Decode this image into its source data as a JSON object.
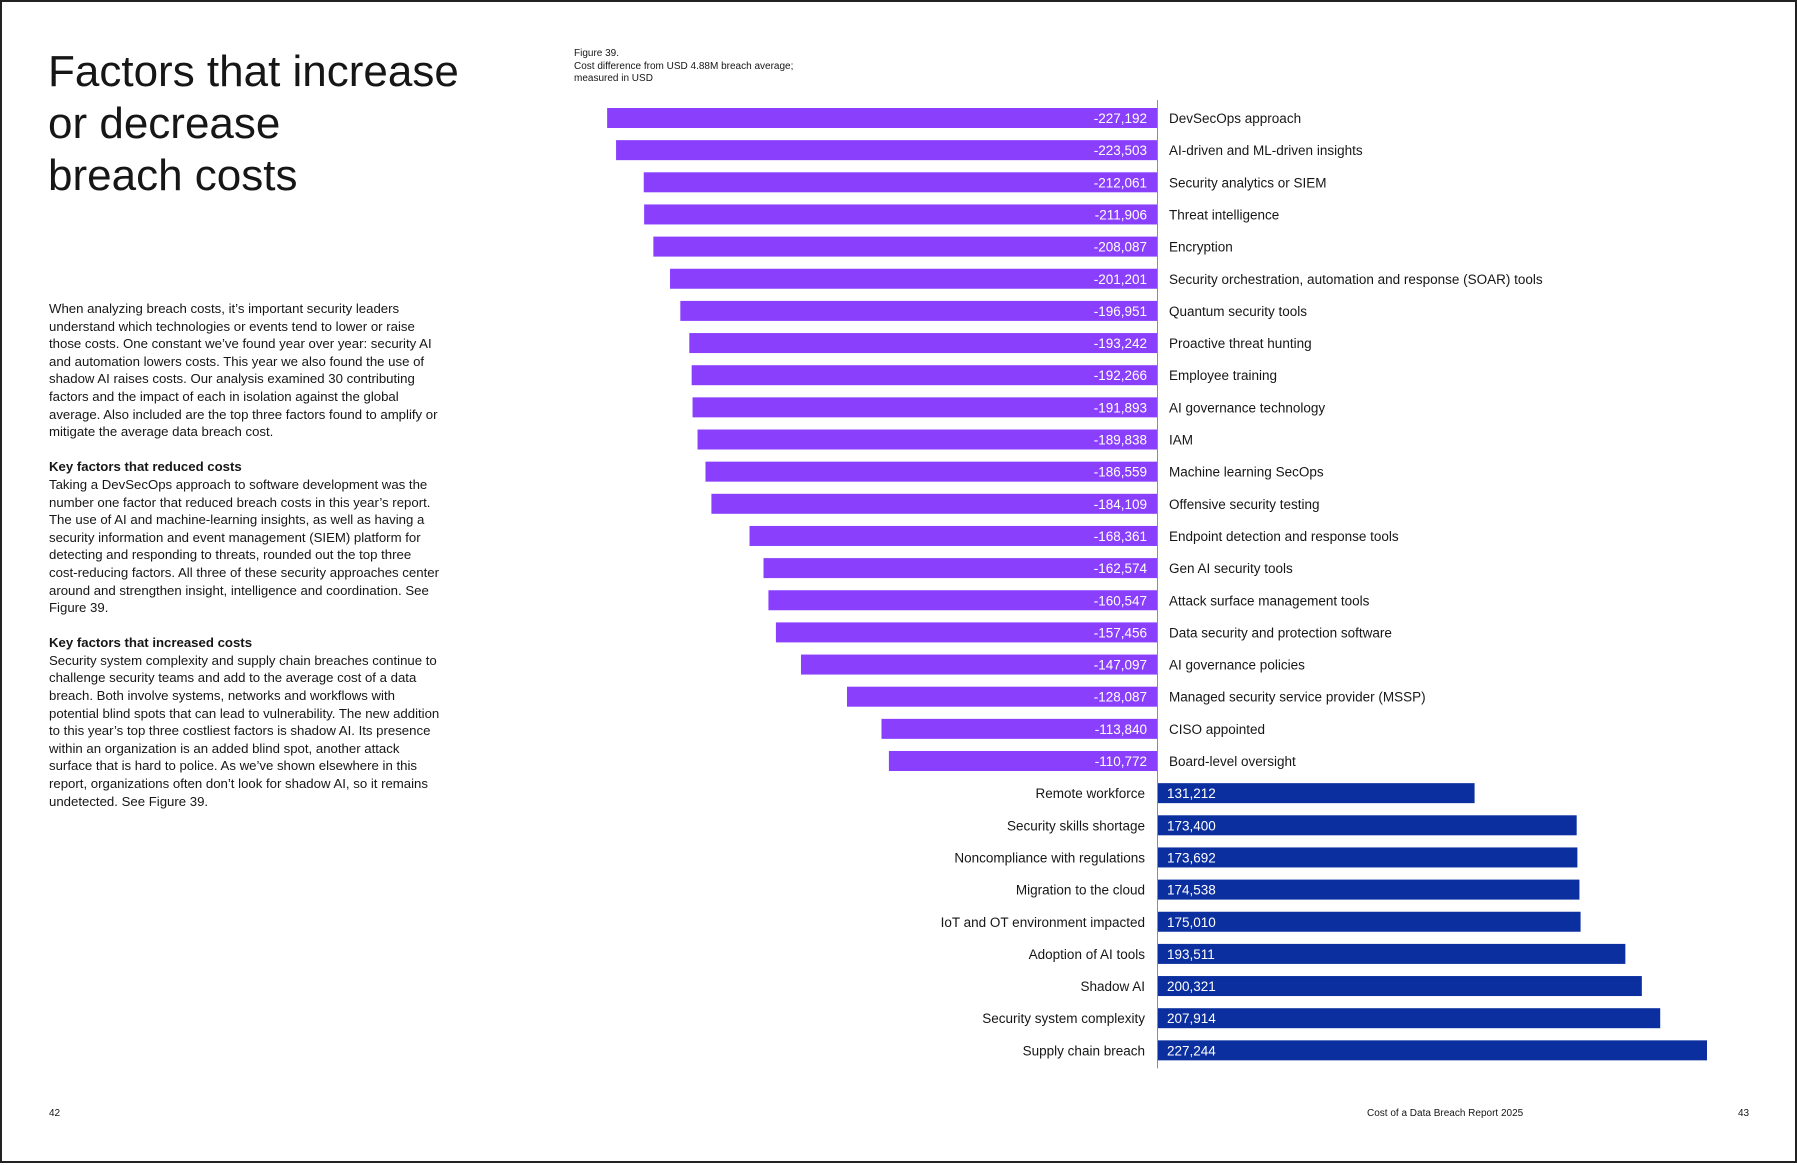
{
  "page": {
    "title_lines": [
      "Factors that increase",
      "or decrease",
      "breach costs"
    ],
    "intro": "When analyzing breach costs, it’s important security leaders understand which technologies or events tend to lower or raise those costs. One constant we’ve found year over year: security AI and automation lowers costs. This year we also found the use of shadow AI raises costs. Our analysis examined 30 contributing factors and the impact of each in isolation against the global average. Also included are the top three factors found to amplify or mitigate the average data breach cost.",
    "reduced_heading": "Key factors that reduced costs",
    "reduced_text": "Taking a DevSecOps approach to software development was the number one factor that reduced breach costs in this year’s report. The use of AI and machine-learning insights, as well as having a security information and event management (SIEM) platform for detecting and responding to threats, rounded out the top three cost-reducing factors. All three of these security approaches center around and strengthen insight, intelligence and coordination. See Figure 39.",
    "increased_heading": "Key factors that increased costs",
    "increased_text": "Security system complexity and supply chain breaches continue to challenge security teams and add to the average cost of a data breach. Both involve systems, networks and workflows with potential blind spots that can lead to vulnerability. The new addition to this year’s top three costliest factors is shadow AI. Its presence within an organization is an added blind spot, another attack surface that is hard to police. As we’ve shown elsewhere in this report, organizations often don’t look for shadow AI, so it remains undetected. See Figure 39."
  },
  "footer": {
    "left_page_number": "42",
    "report_title": "Cost of a Data Breach Report 2025",
    "right_page_number": "43"
  },
  "chart_data": {
    "type": "bar",
    "orientation": "horizontal",
    "title": "Figure 39.",
    "subtitle_lines": [
      "Cost difference from USD 4.88M breach average;",
      "measured in USD"
    ],
    "colors": {
      "decrease": "#8a3ffc",
      "increase": "#0b2f9f",
      "axis": "#8d8d8d"
    },
    "xlim": [
      -227244,
      227244
    ],
    "categories": [
      "DevSecOps approach",
      "AI-driven and ML-driven insights",
      "Security analytics or SIEM",
      "Threat intelligence",
      "Encryption",
      "Security orchestration, automation and response (SOAR) tools",
      "Quantum security tools",
      "Proactive threat hunting",
      "Employee training",
      "AI governance technology",
      "IAM",
      "Machine learning SecOps",
      "Offensive security testing",
      "Endpoint detection and response tools",
      "Gen AI security tools",
      "Attack surface management tools",
      "Data security and protection software",
      "AI governance policies",
      "Managed security service provider (MSSP)",
      "CISO appointed",
      "Board-level oversight",
      "Remote workforce",
      "Security skills shortage",
      "Noncompliance with regulations",
      "Migration to the cloud",
      "IoT and OT environment impacted",
      "Adoption of AI tools",
      "Shadow AI",
      "Security system complexity",
      "Supply chain breach"
    ],
    "values": [
      -227192,
      -223503,
      -212061,
      -211906,
      -208087,
      -201201,
      -196951,
      -193242,
      -192266,
      -191893,
      -189838,
      -186559,
      -184109,
      -168361,
      -162574,
      -160547,
      -157456,
      -147097,
      -128087,
      -113840,
      -110772,
      131212,
      173400,
      173692,
      174538,
      175010,
      193511,
      200321,
      207914,
      227244
    ],
    "value_labels": [
      "-227,192",
      "-223,503",
      "-212,061",
      "-211,906",
      "-208,087",
      "-201,201",
      "-196,951",
      "-193,242",
      "-192,266",
      "-191,893",
      "-189,838",
      "-186,559",
      "-184,109",
      "-168,361",
      "-162,574",
      "-160,547",
      "-157,456",
      "-147,097",
      "-128,087",
      "-113,840",
      "-110,772",
      "131,212",
      "173,400",
      "173,692",
      "174,538",
      "175,010",
      "193,511",
      "200,321",
      "207,914",
      "227,244"
    ]
  }
}
